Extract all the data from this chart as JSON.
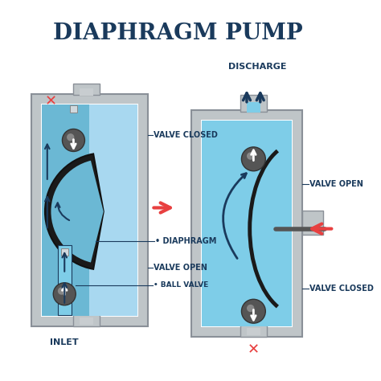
{
  "title": "DIAPHRAGM PUMP",
  "title_color": "#1a3a5c",
  "title_fontsize": 20,
  "bg_color": "#ffffff",
  "label_color": "#1a3a5c",
  "label_fontsize": 7,
  "pump_body_color": "#bfc5c8",
  "pump_body_edge": "#8a9098",
  "fluid_light": "#a8d8f0",
  "fluid_mid": "#6bb8d4",
  "fluid_dark": "#4a9ab5",
  "diaphragm_color": "#1a1a1a",
  "valve_ball_color": "#555555",
  "valve_ball_light": "#888888",
  "arrow_fluid": "#1a3a5c",
  "arrow_red": "#e84040",
  "x_mark_color": "#e84040",
  "annotations": {
    "left": {
      "valve_closed": "VALVE CLOSED",
      "diaphragm": "DIAPHRAGM",
      "valve_open": "VALVE OPEN",
      "ball_valve": "BALL VALVE",
      "inlet": "INLET"
    },
    "right": {
      "discharge": "DISCHARGE",
      "valve_open": "VALVE OPEN",
      "valve_closed": "VALVE CLOSED"
    }
  }
}
